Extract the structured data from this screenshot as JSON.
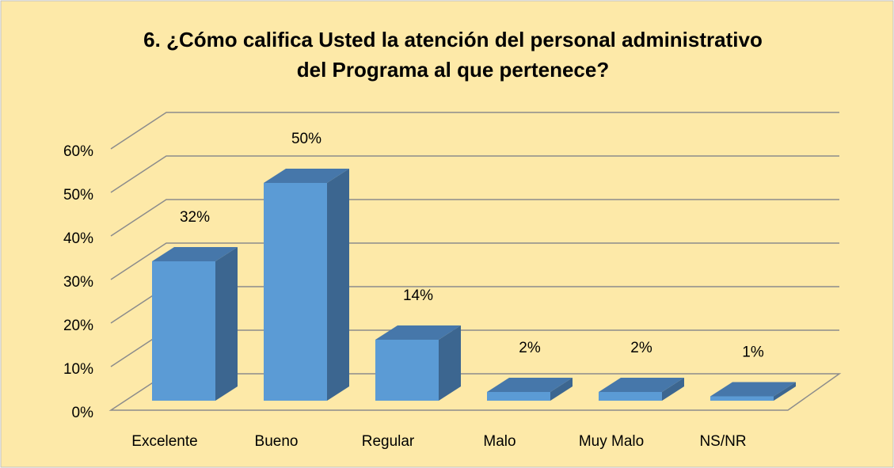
{
  "chart_data": {
    "type": "bar3d",
    "title": [
      "6. ¿Cómo califica Usted la atención del personal administrativo",
      "del Programa al que pertenece?"
    ],
    "categories": [
      "Excelente",
      "Bueno",
      "Regular",
      "Malo",
      "Muy Malo",
      "NS/NR"
    ],
    "values": [
      32,
      50,
      14,
      2,
      2,
      1
    ],
    "value_labels": [
      "32%",
      "50%",
      "14%",
      "2%",
      "2%",
      "1%"
    ],
    "color": "#5b9bd5",
    "ylim": [
      0,
      60
    ],
    "yticks": [
      {
        "value": 0,
        "label": "0%"
      },
      {
        "value": 10,
        "label": "10%"
      },
      {
        "value": 20,
        "label": "20%"
      },
      {
        "value": 30,
        "label": "30%"
      },
      {
        "value": 40,
        "label": "40%"
      },
      {
        "value": 50,
        "label": "50%"
      },
      {
        "value": 60,
        "label": "60%"
      }
    ],
    "grid": true
  }
}
